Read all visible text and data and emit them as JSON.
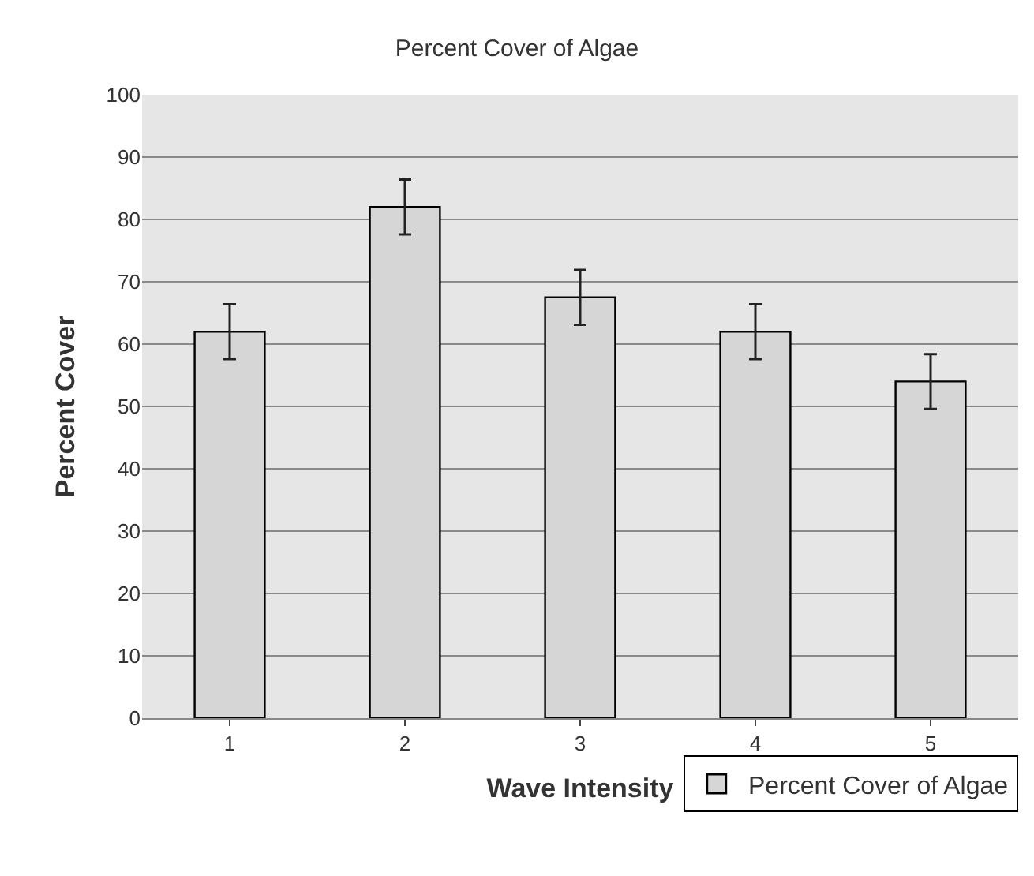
{
  "chart_data": {
    "type": "bar",
    "title": "Percent Cover of Algae",
    "xlabel": "Wave Intensity",
    "ylabel": "Percent Cover",
    "categories": [
      "1",
      "2",
      "3",
      "4",
      "5"
    ],
    "series": [
      {
        "name": "Percent Cover of Algae",
        "color": "#d6d6d6",
        "values": [
          62,
          82,
          67.5,
          62,
          54
        ],
        "errors": [
          4.4,
          4.4,
          4.4,
          4.4,
          4.4
        ]
      }
    ],
    "ylim": [
      0,
      100
    ],
    "yticks": [
      0,
      10,
      20,
      30,
      40,
      50,
      60,
      70,
      80,
      90,
      100
    ],
    "grid": "y",
    "legend": "bottom right"
  }
}
